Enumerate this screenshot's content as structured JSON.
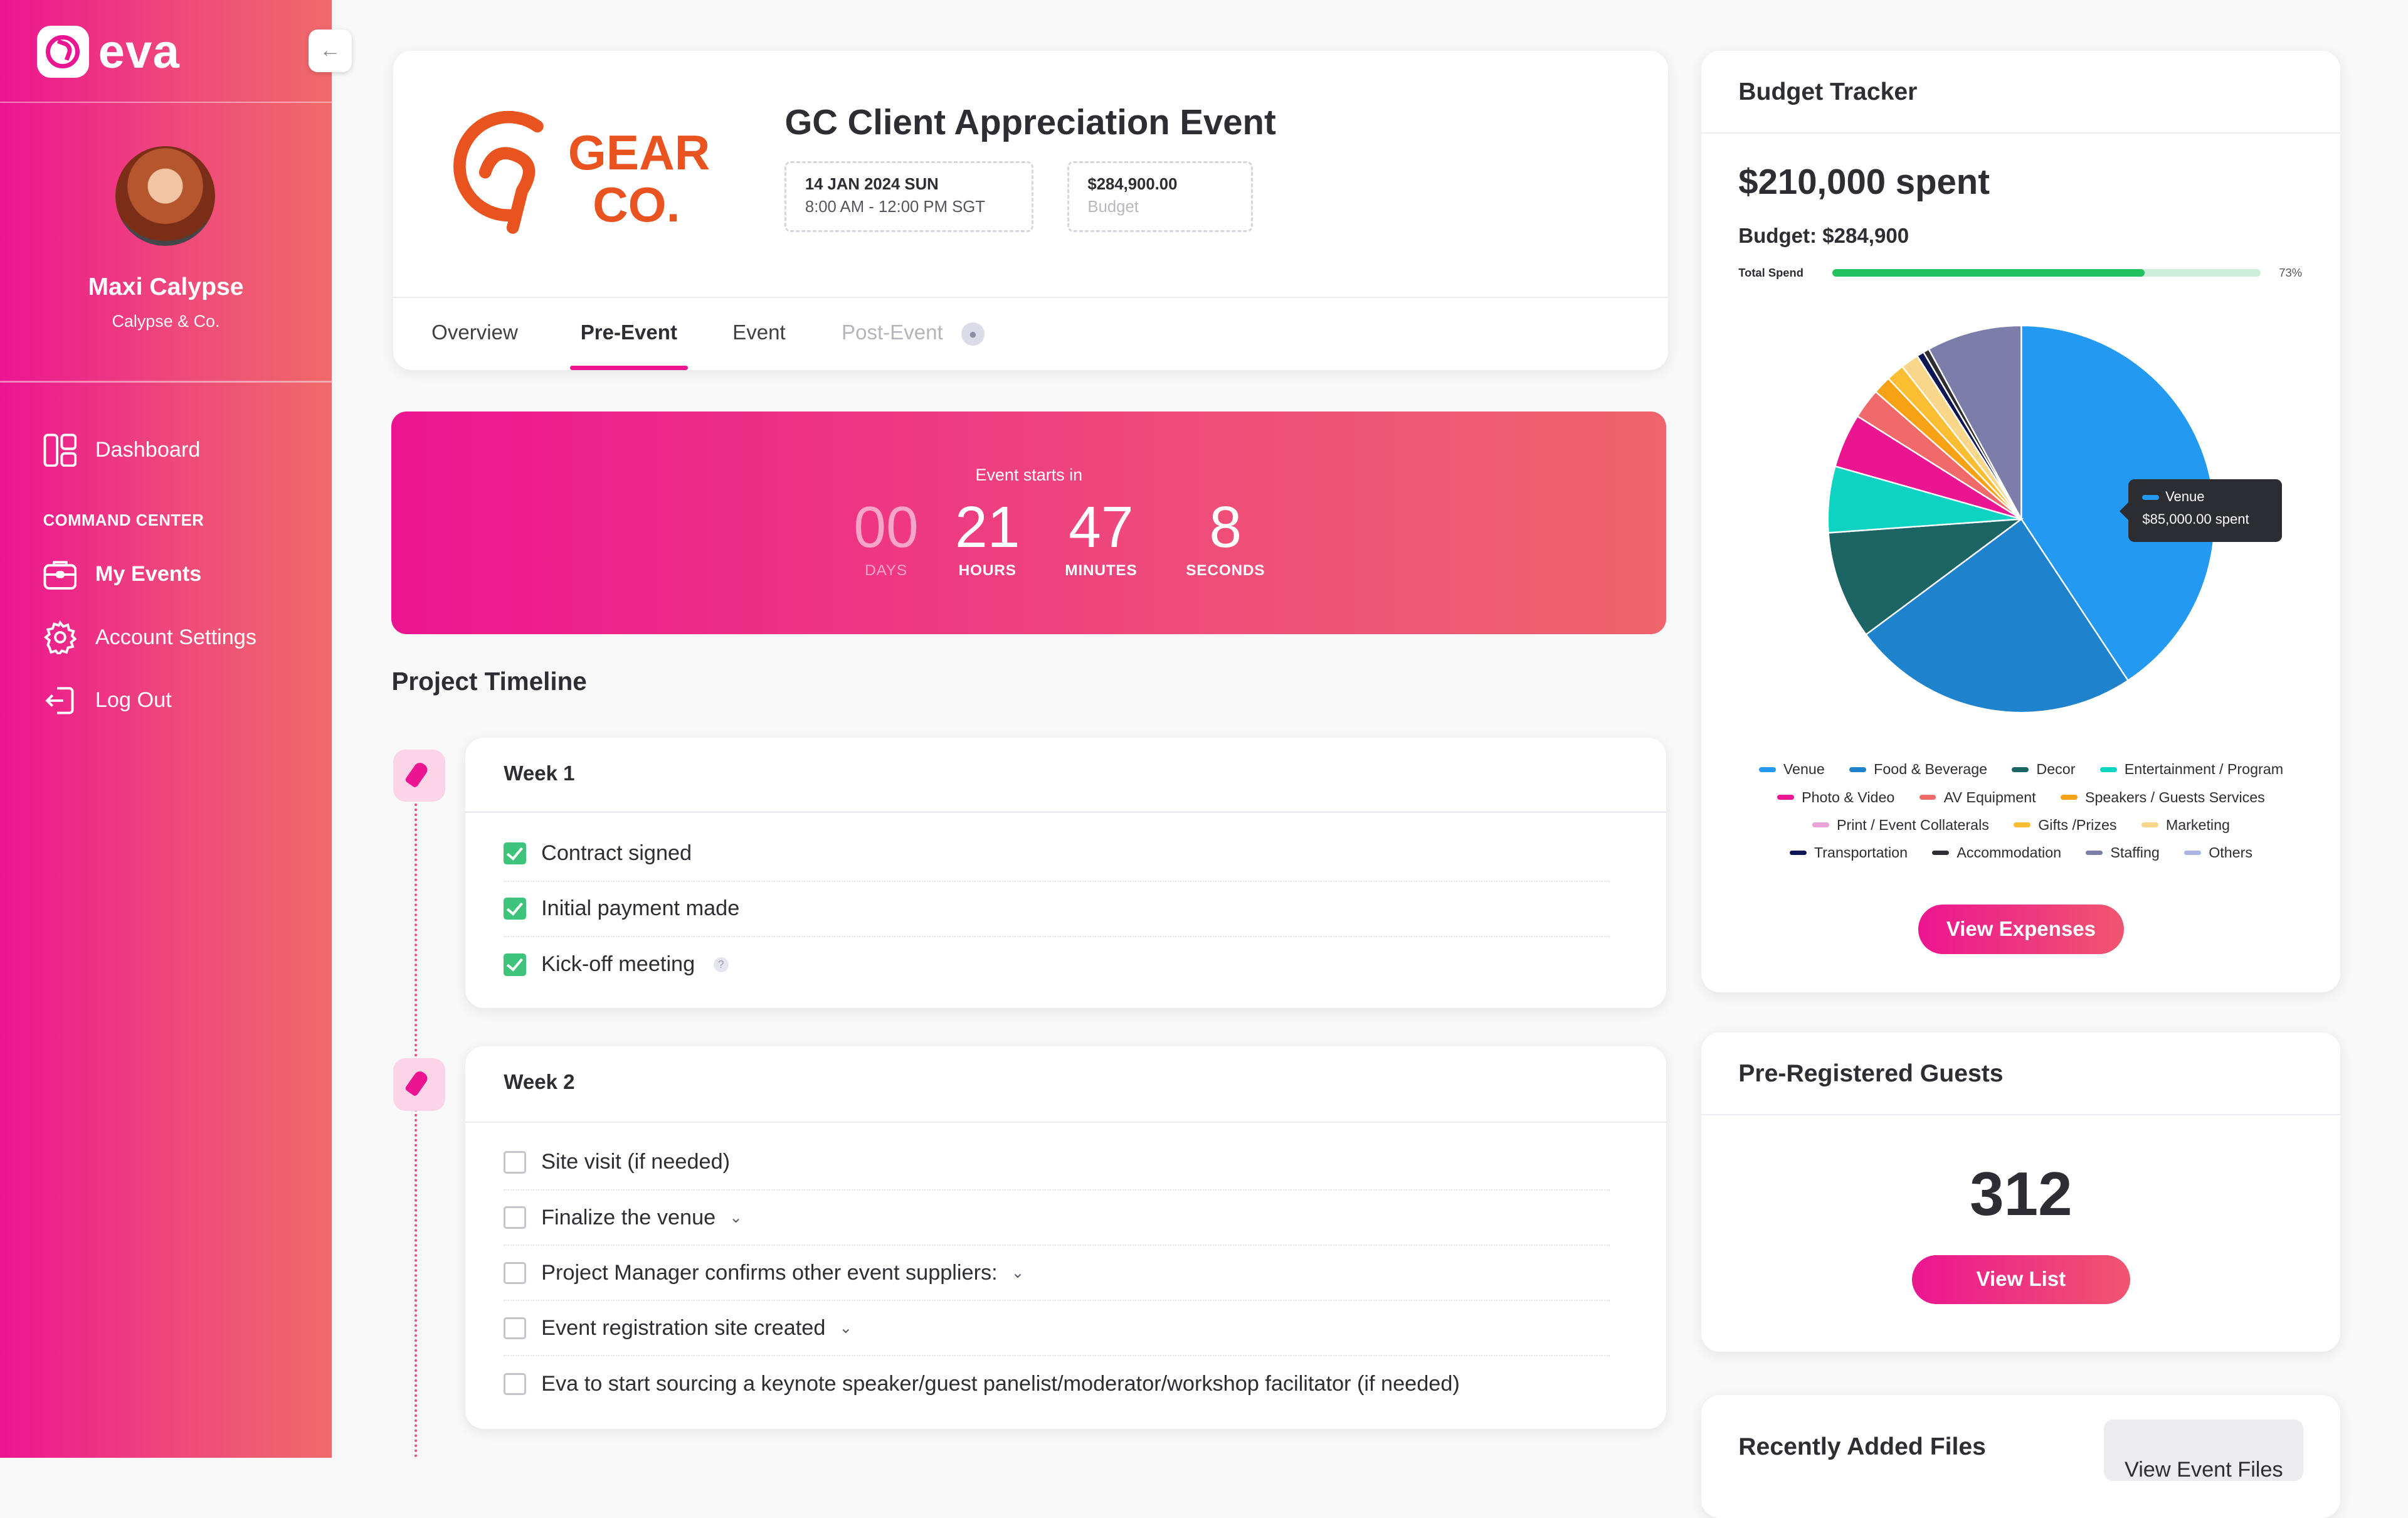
{
  "app": {
    "logo_text": "eva"
  },
  "user": {
    "name": "Maxi Calypse",
    "company": "Calypse & Co."
  },
  "nav": {
    "dashboard": "Dashboard",
    "section": "COMMAND CENTER",
    "my_events": "My Events",
    "account_settings": "Account Settings",
    "log_out": "Log Out"
  },
  "event": {
    "brand_logo_text": [
      "GEAR",
      "CO."
    ],
    "brand_color": "#e8531f",
    "title": "GC Client Appreciation Event",
    "date": "14 JAN 2024 SUN",
    "time": "8:00 AM - 12:00 PM SGT",
    "budget_amount": "$284,900.00",
    "budget_label": "Budget",
    "tabs": [
      "Overview",
      "Pre-Event",
      "Event",
      "Post-Event"
    ],
    "active_tab": "Pre-Event"
  },
  "countdown": {
    "label": "Event starts in",
    "days": "00",
    "days_label": "DAYS",
    "hours": "21",
    "hours_label": "HOURS",
    "minutes": "47",
    "minutes_label": "MINUTES",
    "seconds": "8",
    "seconds_label": "SECONDS"
  },
  "timeline": {
    "title": "Project Timeline",
    "weeks": [
      {
        "title": "Week 1",
        "tasks": [
          {
            "label": "Contract signed",
            "checked": true
          },
          {
            "label": "Initial payment made",
            "checked": true
          },
          {
            "label": "Kick-off meeting",
            "checked": true,
            "help": true
          }
        ]
      },
      {
        "title": "Week 2",
        "tasks": [
          {
            "label": "Site visit (if needed)",
            "checked": false
          },
          {
            "label": "Finalize the venue",
            "checked": false,
            "expand": true
          },
          {
            "label": "Project Manager confirms other event suppliers:",
            "checked": false,
            "expand": true
          },
          {
            "label": "Event registration site created",
            "checked": false,
            "expand": true
          },
          {
            "label": "Eva to start sourcing a keynote speaker/guest panelist/moderator/workshop facilitator (if needed)",
            "checked": false
          }
        ]
      }
    ]
  },
  "budget": {
    "title": "Budget Tracker",
    "spent": "$210,000 spent",
    "budget_line": "Budget: $284,900",
    "total_spend_label": "Total Spend",
    "progress": 0.73,
    "progress_label": "73%",
    "tooltip": {
      "name": "Venue",
      "value": "$85,000.00 spent"
    },
    "button": "View Expenses"
  },
  "chart_data": {
    "type": "pie",
    "unit": "fraction of spend",
    "slices": [
      {
        "label": "Venue",
        "value": 0.405,
        "color": "#2399f1"
      },
      {
        "label": "Food & Beverage",
        "value": 0.24,
        "color": "#1f82cd"
      },
      {
        "label": "Decor",
        "value": 0.09,
        "color": "#1d6464"
      },
      {
        "label": "Entertainment / Program",
        "value": 0.055,
        "color": "#0dd4c2"
      },
      {
        "label": "Photo & Video",
        "value": 0.045,
        "color": "#ec1591"
      },
      {
        "label": "AV Equipment",
        "value": 0.025,
        "color": "#f06a6a"
      },
      {
        "label": "Speakers / Guests Services",
        "value": 0.015,
        "color": "#f7a114"
      },
      {
        "label": "Print / Event Collaterals",
        "value": 0.0,
        "color": "#e9a3d6"
      },
      {
        "label": "Gifts /Prizes",
        "value": 0.015,
        "color": "#fbbe33"
      },
      {
        "label": "Marketing",
        "value": 0.015,
        "color": "#f8d78a"
      },
      {
        "label": "Transportation",
        "value": 0.006,
        "color": "#0d1552"
      },
      {
        "label": "Accommodation",
        "value": 0.005,
        "color": "#2d2d33"
      },
      {
        "label": "Staffing",
        "value": 0.079,
        "color": "#7a7ea9"
      },
      {
        "label": "Others",
        "value": 0.0,
        "color": "#a9b4e0"
      }
    ],
    "legend_rows": [
      [
        "Venue",
        "Food & Beverage",
        "Decor",
        "Entertainment / Program"
      ],
      [
        "Photo & Video",
        "AV Equipment",
        "Speakers / Guests Services"
      ],
      [
        "Print / Event Collaterals",
        "Gifts /Prizes",
        "Marketing"
      ],
      [
        "Transportation",
        "Accommodation",
        "Staffing",
        "Others"
      ]
    ]
  },
  "guests": {
    "title": "Pre-Registered Guests",
    "count": "312",
    "button": "View List"
  },
  "files": {
    "title": "Recently Added Files",
    "button": "View Event Files"
  }
}
